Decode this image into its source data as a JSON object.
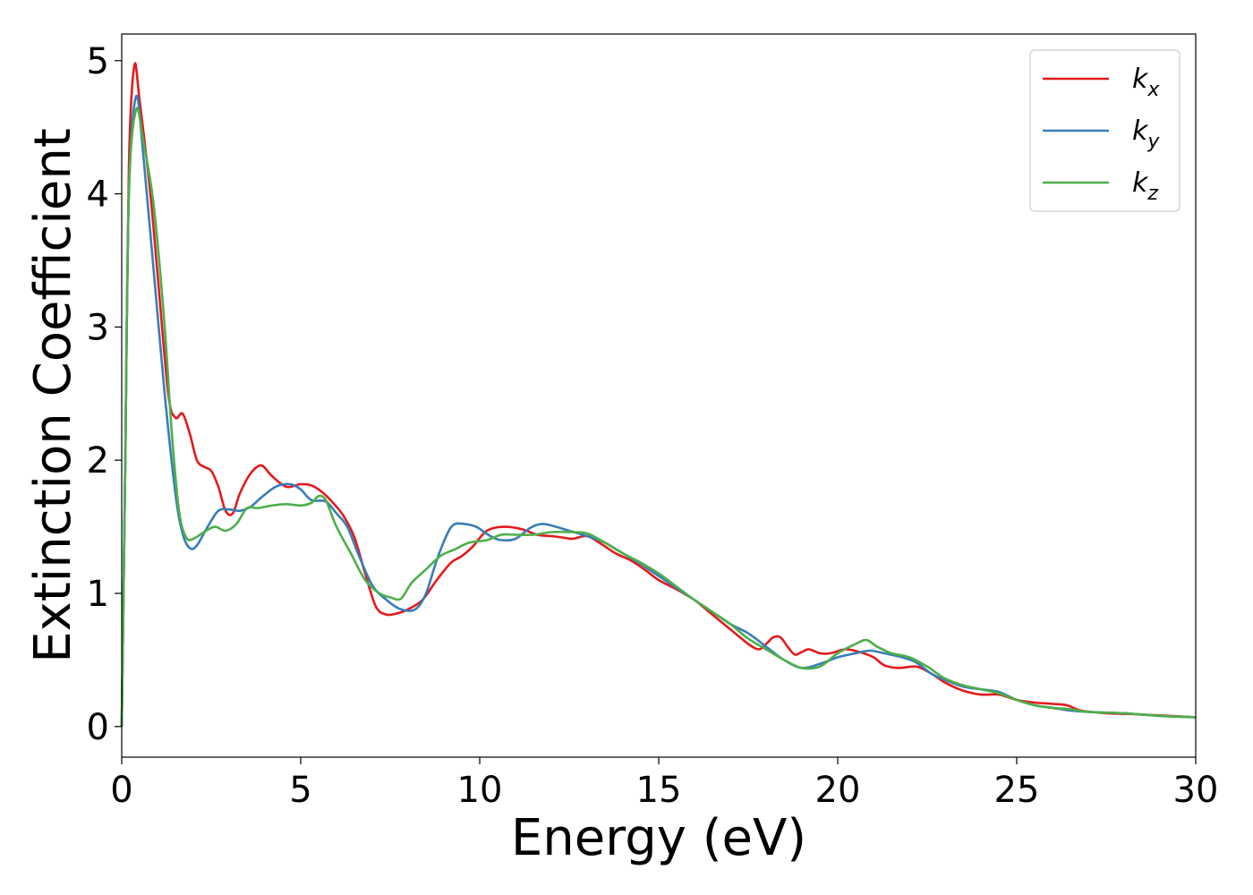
{
  "chart_data": {
    "type": "line",
    "xlabel": "Energy (eV)",
    "ylabel": "Extinction Coefficient",
    "xlim": [
      0,
      30
    ],
    "ylim": [
      -0.23,
      5.2
    ],
    "xticks": [
      "0",
      "5",
      "10",
      "15",
      "20",
      "25",
      "30"
    ],
    "yticks": [
      "0",
      "1",
      "2",
      "3",
      "4",
      "5"
    ],
    "grid": false,
    "legend_position": "top-right",
    "series": [
      {
        "name": "k",
        "sub": "x",
        "color": "#e41a1c",
        "points": [
          [
            0,
            0
          ],
          [
            0.1,
            2.0
          ],
          [
            0.2,
            4.2
          ],
          [
            0.35,
            4.96
          ],
          [
            0.5,
            4.7
          ],
          [
            0.8,
            4.0
          ],
          [
            1.0,
            3.4
          ],
          [
            1.3,
            2.5
          ],
          [
            1.5,
            2.32
          ],
          [
            1.7,
            2.35
          ],
          [
            1.9,
            2.2
          ],
          [
            2.1,
            2.0
          ],
          [
            2.3,
            1.95
          ],
          [
            2.5,
            1.92
          ],
          [
            2.7,
            1.8
          ],
          [
            2.9,
            1.62
          ],
          [
            3.1,
            1.6
          ],
          [
            3.3,
            1.75
          ],
          [
            3.6,
            1.9
          ],
          [
            3.9,
            1.96
          ],
          [
            4.2,
            1.88
          ],
          [
            4.6,
            1.8
          ],
          [
            5.0,
            1.82
          ],
          [
            5.3,
            1.81
          ],
          [
            5.6,
            1.76
          ],
          [
            5.9,
            1.68
          ],
          [
            6.2,
            1.58
          ],
          [
            6.5,
            1.42
          ],
          [
            6.8,
            1.15
          ],
          [
            7.1,
            0.9
          ],
          [
            7.4,
            0.84
          ],
          [
            7.7,
            0.85
          ],
          [
            8.0,
            0.88
          ],
          [
            8.4,
            0.95
          ],
          [
            8.8,
            1.1
          ],
          [
            9.2,
            1.23
          ],
          [
            9.5,
            1.28
          ],
          [
            9.8,
            1.35
          ],
          [
            10.2,
            1.47
          ],
          [
            10.7,
            1.5
          ],
          [
            11.2,
            1.48
          ],
          [
            11.6,
            1.44
          ],
          [
            12.0,
            1.43
          ],
          [
            12.3,
            1.42
          ],
          [
            12.6,
            1.41
          ],
          [
            13.0,
            1.43
          ],
          [
            13.4,
            1.37
          ],
          [
            13.8,
            1.3
          ],
          [
            14.2,
            1.25
          ],
          [
            14.6,
            1.18
          ],
          [
            15.0,
            1.1
          ],
          [
            15.5,
            1.03
          ],
          [
            16.0,
            0.95
          ],
          [
            16.5,
            0.84
          ],
          [
            17.0,
            0.73
          ],
          [
            17.5,
            0.62
          ],
          [
            17.8,
            0.58
          ],
          [
            18.0,
            0.62
          ],
          [
            18.2,
            0.67
          ],
          [
            18.4,
            0.67
          ],
          [
            18.6,
            0.6
          ],
          [
            18.8,
            0.54
          ],
          [
            19.0,
            0.56
          ],
          [
            19.2,
            0.58
          ],
          [
            19.5,
            0.55
          ],
          [
            19.8,
            0.55
          ],
          [
            20.2,
            0.58
          ],
          [
            20.6,
            0.56
          ],
          [
            21.0,
            0.52
          ],
          [
            21.3,
            0.46
          ],
          [
            21.7,
            0.44
          ],
          [
            22.2,
            0.45
          ],
          [
            22.6,
            0.4
          ],
          [
            23.0,
            0.33
          ],
          [
            23.5,
            0.27
          ],
          [
            24.0,
            0.24
          ],
          [
            24.5,
            0.24
          ],
          [
            25.0,
            0.2
          ],
          [
            25.5,
            0.18
          ],
          [
            26.0,
            0.17
          ],
          [
            26.4,
            0.16
          ],
          [
            26.8,
            0.12
          ],
          [
            27.5,
            0.1
          ],
          [
            28.5,
            0.09
          ],
          [
            30.0,
            0.07
          ]
        ]
      },
      {
        "name": "k",
        "sub": "y",
        "color": "#377eb8",
        "points": [
          [
            0,
            0
          ],
          [
            0.1,
            2.0
          ],
          [
            0.2,
            4.0
          ],
          [
            0.4,
            4.73
          ],
          [
            0.6,
            4.3
          ],
          [
            0.9,
            3.4
          ],
          [
            1.2,
            2.5
          ],
          [
            1.5,
            1.75
          ],
          [
            1.7,
            1.45
          ],
          [
            1.9,
            1.34
          ],
          [
            2.1,
            1.36
          ],
          [
            2.4,
            1.5
          ],
          [
            2.7,
            1.62
          ],
          [
            3.0,
            1.63
          ],
          [
            3.3,
            1.62
          ],
          [
            3.6,
            1.65
          ],
          [
            3.9,
            1.72
          ],
          [
            4.3,
            1.8
          ],
          [
            4.7,
            1.82
          ],
          [
            5.0,
            1.78
          ],
          [
            5.3,
            1.7
          ],
          [
            5.7,
            1.69
          ],
          [
            6.0,
            1.6
          ],
          [
            6.3,
            1.5
          ],
          [
            6.6,
            1.3
          ],
          [
            7.0,
            1.06
          ],
          [
            7.4,
            0.95
          ],
          [
            7.8,
            0.88
          ],
          [
            8.2,
            0.88
          ],
          [
            8.5,
            1.0
          ],
          [
            8.8,
            1.25
          ],
          [
            9.1,
            1.45
          ],
          [
            9.3,
            1.52
          ],
          [
            9.6,
            1.52
          ],
          [
            9.9,
            1.5
          ],
          [
            10.3,
            1.43
          ],
          [
            10.6,
            1.4
          ],
          [
            11.0,
            1.41
          ],
          [
            11.4,
            1.49
          ],
          [
            11.7,
            1.52
          ],
          [
            12.0,
            1.51
          ],
          [
            12.5,
            1.47
          ],
          [
            13.0,
            1.43
          ],
          [
            13.5,
            1.38
          ],
          [
            14.0,
            1.3
          ],
          [
            14.5,
            1.22
          ],
          [
            15.0,
            1.13
          ],
          [
            15.5,
            1.04
          ],
          [
            16.0,
            0.95
          ],
          [
            16.5,
            0.86
          ],
          [
            17.0,
            0.77
          ],
          [
            17.5,
            0.7
          ],
          [
            18.0,
            0.6
          ],
          [
            18.5,
            0.5
          ],
          [
            19.0,
            0.44
          ],
          [
            19.5,
            0.47
          ],
          [
            20.0,
            0.52
          ],
          [
            20.5,
            0.55
          ],
          [
            20.9,
            0.57
          ],
          [
            21.3,
            0.55
          ],
          [
            21.8,
            0.52
          ],
          [
            22.2,
            0.48
          ],
          [
            22.6,
            0.4
          ],
          [
            23.0,
            0.35
          ],
          [
            23.5,
            0.3
          ],
          [
            24.0,
            0.28
          ],
          [
            24.5,
            0.26
          ],
          [
            25.0,
            0.2
          ],
          [
            25.5,
            0.16
          ],
          [
            26.0,
            0.14
          ],
          [
            26.5,
            0.12
          ],
          [
            27.0,
            0.11
          ],
          [
            28.0,
            0.1
          ],
          [
            29.0,
            0.08
          ],
          [
            30.0,
            0.07
          ]
        ]
      },
      {
        "name": "k",
        "sub": "z",
        "color": "#4daf4a",
        "points": [
          [
            0,
            0
          ],
          [
            0.1,
            2.0
          ],
          [
            0.2,
            4.0
          ],
          [
            0.4,
            4.63
          ],
          [
            0.6,
            4.4
          ],
          [
            0.9,
            3.9
          ],
          [
            1.2,
            3.0
          ],
          [
            1.4,
            2.2
          ],
          [
            1.6,
            1.62
          ],
          [
            1.8,
            1.42
          ],
          [
            2.0,
            1.41
          ],
          [
            2.3,
            1.46
          ],
          [
            2.6,
            1.5
          ],
          [
            2.9,
            1.47
          ],
          [
            3.2,
            1.52
          ],
          [
            3.5,
            1.64
          ],
          [
            3.8,
            1.64
          ],
          [
            4.2,
            1.66
          ],
          [
            4.6,
            1.67
          ],
          [
            5.0,
            1.66
          ],
          [
            5.3,
            1.68
          ],
          [
            5.5,
            1.73
          ],
          [
            5.7,
            1.7
          ],
          [
            6.0,
            1.5
          ],
          [
            6.4,
            1.3
          ],
          [
            6.8,
            1.1
          ],
          [
            7.2,
            1.0
          ],
          [
            7.5,
            0.97
          ],
          [
            7.8,
            0.96
          ],
          [
            8.1,
            1.08
          ],
          [
            8.5,
            1.18
          ],
          [
            8.9,
            1.28
          ],
          [
            9.3,
            1.33
          ],
          [
            9.7,
            1.38
          ],
          [
            10.2,
            1.4
          ],
          [
            10.6,
            1.44
          ],
          [
            11.0,
            1.44
          ],
          [
            11.5,
            1.44
          ],
          [
            12.0,
            1.46
          ],
          [
            12.5,
            1.46
          ],
          [
            13.0,
            1.45
          ],
          [
            13.5,
            1.38
          ],
          [
            14.0,
            1.3
          ],
          [
            14.5,
            1.23
          ],
          [
            15.0,
            1.15
          ],
          [
            15.5,
            1.05
          ],
          [
            16.0,
            0.95
          ],
          [
            16.5,
            0.86
          ],
          [
            17.0,
            0.77
          ],
          [
            17.5,
            0.66
          ],
          [
            18.0,
            0.58
          ],
          [
            18.5,
            0.5
          ],
          [
            19.0,
            0.44
          ],
          [
            19.5,
            0.45
          ],
          [
            20.0,
            0.55
          ],
          [
            20.5,
            0.62
          ],
          [
            20.8,
            0.65
          ],
          [
            21.1,
            0.6
          ],
          [
            21.5,
            0.55
          ],
          [
            22.0,
            0.52
          ],
          [
            22.5,
            0.45
          ],
          [
            23.0,
            0.36
          ],
          [
            23.5,
            0.31
          ],
          [
            24.0,
            0.28
          ],
          [
            24.5,
            0.25
          ],
          [
            25.0,
            0.2
          ],
          [
            25.5,
            0.16
          ],
          [
            26.0,
            0.14
          ],
          [
            26.5,
            0.13
          ],
          [
            27.0,
            0.11
          ],
          [
            28.0,
            0.1
          ],
          [
            29.0,
            0.08
          ],
          [
            30.0,
            0.07
          ]
        ]
      }
    ]
  }
}
